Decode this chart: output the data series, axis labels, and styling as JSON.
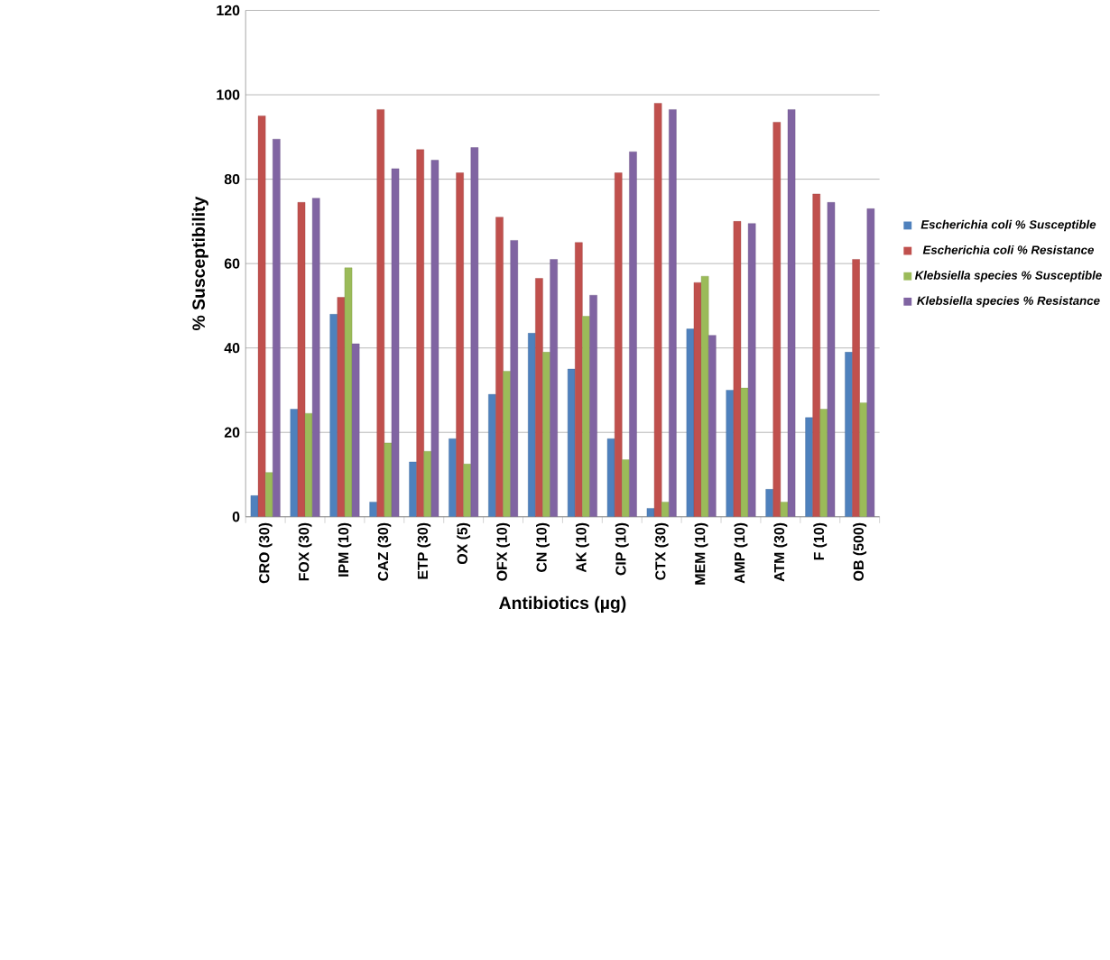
{
  "chart_data": {
    "type": "bar",
    "xlabel": "Antibiotics (µg)",
    "ylabel": "% Susceptibility",
    "categories": [
      "CRO (30)",
      "FOX (30)",
      "IPM (10)",
      "CAZ (30)",
      "ETP (30)",
      "OX (5)",
      "OFX (10)",
      "CN (10)",
      "AK (10)",
      "CIP (10)",
      "CTX (30)",
      "MEM (10)",
      "AMP (10)",
      "ATM (30)",
      "F (10)",
      "OB (500)"
    ],
    "series": [
      {
        "name": "Escherichia coli % Susceptible",
        "color": "#4f81bd",
        "values": [
          5,
          25.5,
          48,
          3.5,
          13,
          18.5,
          29,
          43.5,
          35,
          18.5,
          2,
          44.5,
          30,
          6.5,
          23.5,
          39
        ]
      },
      {
        "name": "Escherichia coli % Resistance",
        "color": "#c0504d",
        "values": [
          95,
          74.5,
          52,
          96.5,
          87,
          81.5,
          71,
          56.5,
          65,
          81.5,
          98,
          55.5,
          70,
          93.5,
          76.5,
          61
        ]
      },
      {
        "name": "Klebsiella species % Susceptible",
        "color": "#9bbb59",
        "values": [
          10.5,
          24.5,
          59,
          17.5,
          15.5,
          12.5,
          34.5,
          39,
          47.5,
          13.5,
          3.5,
          57,
          30.5,
          3.5,
          25.5,
          27
        ]
      },
      {
        "name": "Klebsiella species % Resistance",
        "color": "#8064a2",
        "values": [
          89.5,
          75.5,
          41,
          82.5,
          84.5,
          87.5,
          65.5,
          61,
          52.5,
          86.5,
          96.5,
          43,
          69.5,
          96.5,
          74.5,
          73
        ]
      }
    ],
    "ylim": [
      0,
      120
    ],
    "yticks": [
      0,
      20,
      40,
      60,
      80,
      100,
      120
    ],
    "grid": "y",
    "legend": "right"
  }
}
